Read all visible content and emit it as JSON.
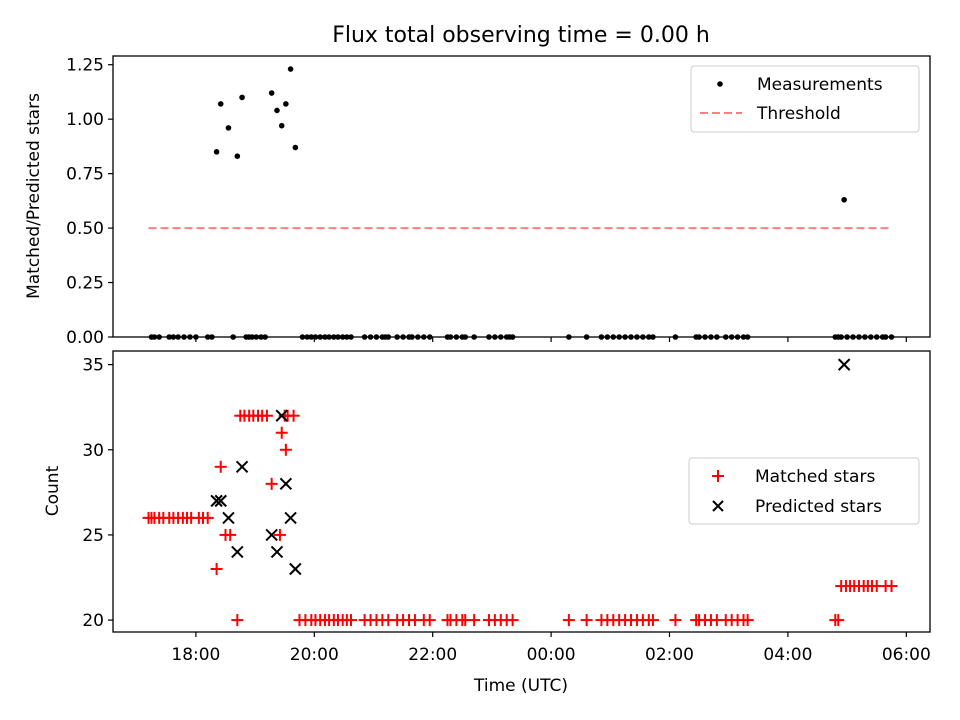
{
  "chart_data": [
    {
      "type": "scatter",
      "title": "Flux total observing time = 0.00 h",
      "xlabel": "",
      "ylabel": "Matched/Predicted stars",
      "xlim": [
        16.6,
        30.4
      ],
      "ylim": [
        0,
        1.29
      ],
      "yticks": [
        0,
        0.25,
        0.5,
        0.75,
        1.0,
        1.25
      ],
      "ytick_labels": [
        "0.00",
        "0.25",
        "0.50",
        "0.75",
        "1.00",
        "1.25"
      ],
      "xticks": [
        18,
        20,
        22,
        24,
        26,
        28,
        30
      ],
      "grid": false,
      "legend": {
        "position": "top-right",
        "entries": [
          "Measurements",
          "Threshold"
        ]
      },
      "series": [
        {
          "name": "Measurements",
          "color": "#000000",
          "marker": "dot",
          "points": [
            [
              18.35,
              0.85
            ],
            [
              18.42,
              1.07
            ],
            [
              18.55,
              0.96
            ],
            [
              18.7,
              0.83
            ],
            [
              18.78,
              1.1
            ],
            [
              19.28,
              1.12
            ],
            [
              19.37,
              1.04
            ],
            [
              19.45,
              0.97
            ],
            [
              19.52,
              1.07
            ],
            [
              19.6,
              1.23
            ],
            [
              19.68,
              0.87
            ],
            [
              28.95,
              0.63
            ]
          ],
          "zero_x": [
            17.25,
            17.3,
            17.38,
            17.55,
            17.62,
            17.7,
            17.8,
            17.9,
            18.0,
            18.2,
            18.27,
            18.63,
            18.85,
            18.9,
            18.95,
            19.02,
            19.1,
            19.17,
            19.8,
            19.88,
            19.95,
            20.02,
            20.1,
            20.18,
            20.25,
            20.33,
            20.4,
            20.48,
            20.55,
            20.62,
            20.85,
            20.95,
            21.05,
            21.15,
            21.2,
            21.25,
            21.4,
            21.5,
            21.6,
            21.65,
            21.75,
            21.85,
            21.95,
            22.25,
            22.3,
            22.4,
            22.5,
            22.55,
            22.7,
            22.95,
            23.05,
            23.15,
            23.25,
            23.3,
            23.35,
            24.3,
            24.6,
            24.85,
            24.95,
            25.05,
            25.15,
            25.25,
            25.35,
            25.45,
            25.55,
            25.65,
            25.72,
            26.1,
            26.45,
            26.5,
            26.6,
            26.7,
            26.8,
            26.95,
            27.05,
            27.15,
            27.25,
            27.32,
            28.8,
            28.85,
            28.9,
            29.0,
            29.1,
            29.2,
            29.3,
            29.4,
            29.5,
            29.6,
            29.65,
            29.75
          ]
        },
        {
          "name": "Threshold",
          "color": "#ff7f7f",
          "style": "dashed",
          "x": [
            17.2,
            29.75
          ],
          "y": [
            0.5,
            0.5
          ]
        }
      ]
    },
    {
      "type": "scatter",
      "title": "",
      "xlabel": "Time (UTC)",
      "ylabel": "Count",
      "xlim": [
        16.6,
        30.4
      ],
      "ylim": [
        19.3,
        35.8
      ],
      "yticks": [
        20,
        25,
        30,
        35
      ],
      "xticks": [
        18,
        20,
        22,
        24,
        26,
        28,
        30
      ],
      "xtick_labels": [
        "18:00",
        "20:00",
        "22:00",
        "00:00",
        "02:00",
        "04:00",
        "06:00"
      ],
      "grid": false,
      "legend": {
        "position": "center-right",
        "entries": [
          "Matched stars",
          "Predicted stars"
        ]
      },
      "series": [
        {
          "name": "Matched stars",
          "color": "#ff0000",
          "marker": "plus",
          "points": [
            [
              17.2,
              26
            ],
            [
              17.25,
              26
            ],
            [
              17.3,
              26
            ],
            [
              17.38,
              26
            ],
            [
              17.45,
              26
            ],
            [
              17.55,
              26
            ],
            [
              17.62,
              26
            ],
            [
              17.7,
              26
            ],
            [
              17.78,
              26
            ],
            [
              17.85,
              26
            ],
            [
              17.92,
              26
            ],
            [
              18.05,
              26
            ],
            [
              18.12,
              26
            ],
            [
              18.2,
              26
            ],
            [
              18.35,
              23
            ],
            [
              18.42,
              29
            ],
            [
              18.5,
              25
            ],
            [
              18.58,
              25
            ],
            [
              18.7,
              20
            ],
            [
              18.75,
              32
            ],
            [
              18.82,
              32
            ],
            [
              18.9,
              32
            ],
            [
              18.97,
              32
            ],
            [
              19.05,
              32
            ],
            [
              19.12,
              32
            ],
            [
              19.2,
              32
            ],
            [
              19.5,
              32
            ],
            [
              19.55,
              32
            ],
            [
              19.65,
              32
            ],
            [
              19.28,
              28
            ],
            [
              19.42,
              25
            ],
            [
              19.45,
              31
            ],
            [
              19.52,
              30
            ],
            [
              19.75,
              20
            ],
            [
              19.85,
              20
            ],
            [
              19.95,
              20
            ],
            [
              20.02,
              20
            ],
            [
              20.1,
              20
            ],
            [
              20.18,
              20
            ],
            [
              20.25,
              20
            ],
            [
              20.33,
              20
            ],
            [
              20.4,
              20
            ],
            [
              20.48,
              20
            ],
            [
              20.55,
              20
            ],
            [
              20.62,
              20
            ],
            [
              20.85,
              20
            ],
            [
              20.95,
              20
            ],
            [
              21.05,
              20
            ],
            [
              21.15,
              20
            ],
            [
              21.25,
              20
            ],
            [
              21.4,
              20
            ],
            [
              21.5,
              20
            ],
            [
              21.6,
              20
            ],
            [
              21.7,
              20
            ],
            [
              21.85,
              20
            ],
            [
              21.95,
              20
            ],
            [
              22.25,
              20
            ],
            [
              22.3,
              20
            ],
            [
              22.4,
              20
            ],
            [
              22.5,
              20
            ],
            [
              22.55,
              20
            ],
            [
              22.7,
              20
            ],
            [
              22.95,
              20
            ],
            [
              23.05,
              20
            ],
            [
              23.15,
              20
            ],
            [
              23.25,
              20
            ],
            [
              23.35,
              20
            ],
            [
              24.3,
              20
            ],
            [
              24.6,
              20
            ],
            [
              24.85,
              20
            ],
            [
              24.95,
              20
            ],
            [
              25.05,
              20
            ],
            [
              25.15,
              20
            ],
            [
              25.25,
              20
            ],
            [
              25.35,
              20
            ],
            [
              25.45,
              20
            ],
            [
              25.55,
              20
            ],
            [
              25.65,
              20
            ],
            [
              25.72,
              20
            ],
            [
              26.1,
              20
            ],
            [
              26.45,
              20
            ],
            [
              26.5,
              20
            ],
            [
              26.6,
              20
            ],
            [
              26.7,
              20
            ],
            [
              26.8,
              20
            ],
            [
              26.95,
              20
            ],
            [
              27.05,
              20
            ],
            [
              27.15,
              20
            ],
            [
              27.25,
              20
            ],
            [
              27.32,
              20
            ],
            [
              28.8,
              20
            ],
            [
              28.85,
              20
            ],
            [
              28.9,
              22
            ],
            [
              28.98,
              22
            ],
            [
              29.05,
              22
            ],
            [
              29.12,
              22
            ],
            [
              29.2,
              22
            ],
            [
              29.28,
              22
            ],
            [
              29.35,
              22
            ],
            [
              29.42,
              22
            ],
            [
              29.5,
              22
            ],
            [
              29.65,
              22
            ],
            [
              29.75,
              22
            ]
          ]
        },
        {
          "name": "Predicted stars",
          "color": "#000000",
          "marker": "x",
          "points": [
            [
              18.35,
              27
            ],
            [
              18.42,
              27
            ],
            [
              18.55,
              26
            ],
            [
              18.7,
              24
            ],
            [
              18.78,
              29
            ],
            [
              19.28,
              25
            ],
            [
              19.37,
              24
            ],
            [
              19.45,
              32
            ],
            [
              19.52,
              28
            ],
            [
              19.6,
              26
            ],
            [
              19.68,
              23
            ],
            [
              28.95,
              35
            ]
          ]
        }
      ]
    }
  ]
}
